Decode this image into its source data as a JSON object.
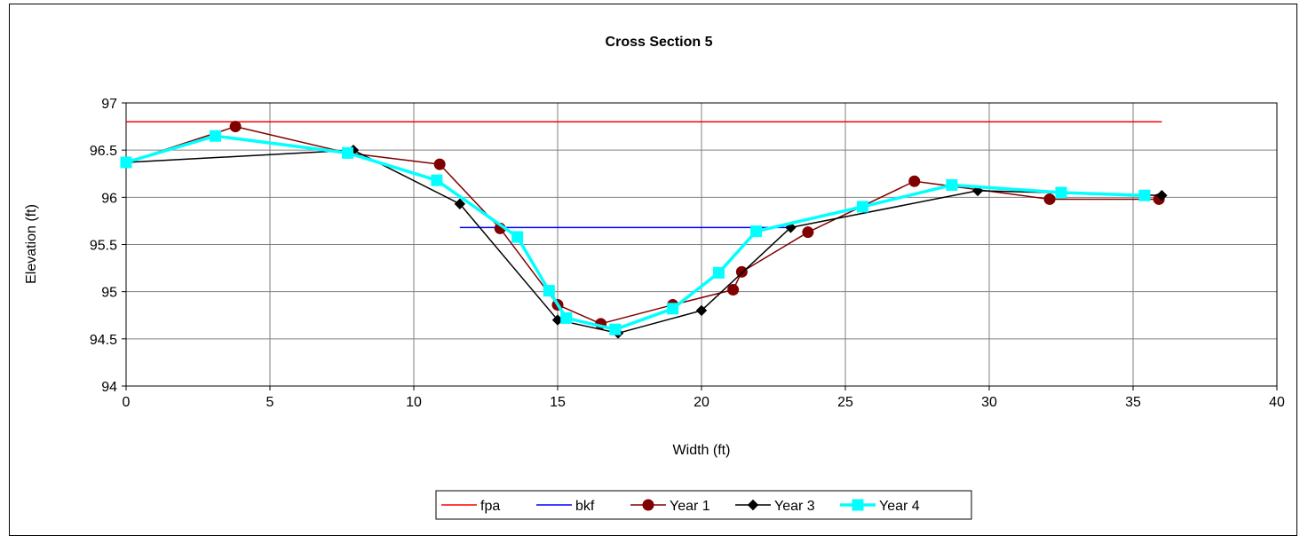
{
  "chart_data": {
    "type": "line",
    "title": "Cross Section 5",
    "xlabel": "Width (ft)",
    "ylabel": "Elevation (ft)",
    "xlim": [
      0,
      40
    ],
    "ylim": [
      94,
      97
    ],
    "x_ticks": [
      0,
      5,
      10,
      15,
      20,
      25,
      30,
      35,
      40
    ],
    "y_ticks": [
      94,
      94.5,
      95,
      95.5,
      96,
      96.5,
      97
    ],
    "x_tick_labels": [
      "0",
      "5",
      "10",
      "15",
      "20",
      "25",
      "30",
      "35",
      "40"
    ],
    "y_tick_labels": [
      "94",
      "94.5",
      "95",
      "95.5",
      "96",
      "96.5",
      "97"
    ],
    "grid": true,
    "legend_position": "bottom",
    "series": [
      {
        "name": "fpa",
        "color": "#ff0000",
        "marker": "none",
        "points": [
          [
            0,
            96.8
          ],
          [
            36,
            96.8
          ]
        ]
      },
      {
        "name": "bkf",
        "color": "#0000ff",
        "marker": "none",
        "points": [
          [
            11.6,
            95.68
          ],
          [
            23.1,
            95.68
          ]
        ]
      },
      {
        "name": "Year 1",
        "color": "#800000",
        "marker": "circle",
        "points": [
          [
            0,
            96.37
          ],
          [
            3.8,
            96.75
          ],
          [
            7.7,
            96.47
          ],
          [
            10.9,
            96.35
          ],
          [
            13,
            95.67
          ],
          [
            15,
            94.86
          ],
          [
            16.5,
            94.66
          ],
          [
            19,
            94.86
          ],
          [
            21.1,
            95.02
          ],
          [
            21.4,
            95.21
          ],
          [
            23.7,
            95.63
          ],
          [
            27.4,
            96.17
          ],
          [
            32.1,
            95.98
          ],
          [
            35.9,
            95.98
          ]
        ]
      },
      {
        "name": "Year 3",
        "color": "#000000",
        "marker": "diamond",
        "points": [
          [
            0,
            96.37
          ],
          [
            7.9,
            96.5
          ],
          [
            11.6,
            95.93
          ],
          [
            15,
            94.7
          ],
          [
            17.1,
            94.56
          ],
          [
            20,
            94.8
          ],
          [
            23.1,
            95.68
          ],
          [
            29.6,
            96.07
          ],
          [
            36,
            96.02
          ]
        ]
      },
      {
        "name": "Year 4",
        "color": "#00ffff",
        "marker": "square",
        "points": [
          [
            0,
            96.37
          ],
          [
            3.1,
            96.65
          ],
          [
            7.7,
            96.47
          ],
          [
            10.8,
            96.18
          ],
          [
            13.6,
            95.58
          ],
          [
            14.7,
            95.01
          ],
          [
            15.3,
            94.72
          ],
          [
            17,
            94.6
          ],
          [
            19,
            94.82
          ],
          [
            20.6,
            95.2
          ],
          [
            21.9,
            95.64
          ],
          [
            25.6,
            95.9
          ],
          [
            28.7,
            96.13
          ],
          [
            32.5,
            96.05
          ],
          [
            35.4,
            96.02
          ]
        ]
      }
    ]
  }
}
